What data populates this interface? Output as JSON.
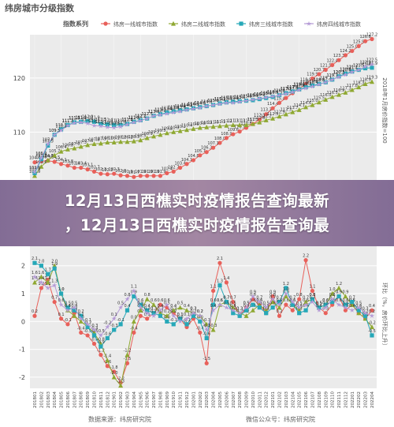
{
  "chart_data": [
    {
      "type": "line",
      "title": "纬房城市分级指数",
      "legend_title": "指数系列",
      "legend_position": "top",
      "ylabel": "2018年1月房价指数=100",
      "ylim": [
        101,
        128
      ],
      "yticks": [
        110,
        120
      ],
      "series": [
        {
          "name": "纬房一线城市指数",
          "color": "#e8605a",
          "marker": "circle",
          "values": [
            104.4,
            104.6,
            104.7,
            104.5,
            104.1,
            103.8,
            103.4,
            103.4,
            103.1,
            102.7,
            102.3,
            102.2,
            102.3,
            102.0,
            101.9,
            101.7,
            101.9,
            101.9,
            101.9,
            101.9,
            102.4,
            102.7,
            103.4,
            104.1,
            104.8,
            105.7,
            106.3,
            107.1,
            108.0,
            108.9,
            109.6,
            110.1,
            110.8,
            111.5,
            112.3,
            113.3,
            114.4,
            115.4,
            116.3,
            117.2,
            118.0,
            118.9,
            119.9,
            120.7,
            121.5,
            122.4,
            123.3,
            124.2,
            125.0,
            125.9,
            126.8,
            127.2
          ]
        },
        {
          "name": "纬房二线城市指数",
          "color": "#8fa832",
          "marker": "triangle",
          "values": [
            101.9,
            103.6,
            104.8,
            105.7,
            106.4,
            106.8,
            107.0,
            107.3,
            107.6,
            107.8,
            107.9,
            108.1,
            108.1,
            108.2,
            108.2,
            108.3,
            108.5,
            108.9,
            109.2,
            109.5,
            109.8,
            110.0,
            110.2,
            110.4,
            110.6,
            110.8,
            110.9,
            111.0,
            111.1,
            111.2,
            111.3,
            111.3,
            111.3,
            111.5,
            111.8,
            112.2,
            112.5,
            112.9,
            113.3,
            113.7,
            114.1,
            114.6,
            115.0,
            115.5,
            116.0,
            116.5,
            116.9,
            117.3,
            117.8,
            118.3,
            118.9,
            119.3
          ]
        },
        {
          "name": "纬房三线城市指数",
          "color": "#26a8b8",
          "marker": "square",
          "values": [
            102.4,
            105.0,
            107.5,
            109.5,
            110.5,
            111.3,
            111.8,
            111.9,
            112.0,
            111.9,
            111.5,
            111.4,
            111.3,
            111.3,
            111.5,
            111.9,
            112.2,
            112.5,
            113.0,
            113.3,
            113.6,
            113.8,
            114.0,
            114.2,
            114.4,
            114.6,
            114.8,
            115.0,
            115.3,
            115.5,
            115.6,
            115.7,
            115.8,
            115.9,
            116.1,
            116.3,
            116.5,
            116.8,
            117.2,
            117.5,
            117.9,
            118.3,
            118.6,
            118.9,
            119.2,
            119.7,
            120.3,
            120.8,
            121.2,
            121.5,
            121.8,
            121.9
          ]
        },
        {
          "name": "纬房四线城市指数",
          "color": "#b49ad6",
          "marker": "star",
          "values": [
            102.6,
            105.2,
            107.8,
            109.5,
            110.3,
            111.2,
            111.7,
            111.8,
            111.6,
            111.2,
            111.1,
            110.9,
            110.8,
            111.0,
            111.4,
            111.8,
            112.1,
            112.5,
            113.0,
            113.2,
            113.4,
            113.6,
            113.8,
            114.1,
            114.3,
            114.5,
            114.8,
            115.0,
            115.2,
            115.4,
            115.4,
            115.6,
            115.8,
            116.0,
            116.2,
            116.4,
            116.6,
            116.8,
            117.1,
            117.4,
            117.8,
            118.1,
            118.4,
            118.8,
            119.2,
            119.7,
            120.2,
            120.6,
            121.1,
            121.5,
            122.1,
            122.5
          ]
        }
      ]
    },
    {
      "type": "line",
      "ylabel": "环比（%，房价环比上升）",
      "ylim": [
        -2.4,
        2.7
      ],
      "yticks": [
        -2,
        -1,
        0,
        1,
        2
      ],
      "x": [
        "201801",
        "201802",
        "201803",
        "201804",
        "201805",
        "201806",
        "201807",
        "201808",
        "201809",
        "201810",
        "201811",
        "201812",
        "201901",
        "201902",
        "201903",
        "201904",
        "201905",
        "201906",
        "201907",
        "201908",
        "201909",
        "201910",
        "201911",
        "201912",
        "202001",
        "202002",
        "202003",
        "202004",
        "202005",
        "202006",
        "202007",
        "202008",
        "202009",
        "202010",
        "202011",
        "202012",
        "202101",
        "202102",
        "202103",
        "202104",
        "202105",
        "202106",
        "202107",
        "202108",
        "202109",
        "202110",
        "202111",
        "202112",
        "202201",
        "202202",
        "202203",
        "202204"
      ],
      "series": [
        {
          "name": "纬房一线城市指数",
          "color": "#e8605a",
          "values": [
            0.2,
            1.2,
            1.5,
            0.7,
            0.1,
            -0.1,
            0.3,
            -0.4,
            -0.5,
            -0.8,
            -1.2,
            -1.6,
            -1.8,
            -2.2,
            -1.5,
            -0.4,
            0.2,
            0.1,
            0.3,
            0.6,
            0.5,
            0.3,
            0.1,
            -0.2,
            0.1,
            -0.4,
            -1.5,
            1.1,
            2.1,
            1.4,
            0.7,
            0.2,
            0.5,
            0.8,
            0.6,
            0.3,
            0.9,
            0.2,
            0.6,
            0.4,
            0.8,
            2.2,
            1.1,
            0.5,
            0.3,
            0.6,
            0.9,
            0.4,
            0.6,
            0.3,
            0.1,
            0.4
          ]
        },
        {
          "name": "纬房二线城市指数",
          "color": "#8fa832",
          "values": [
            1.4,
            1.6,
            1.4,
            2.0,
            1.0,
            0.4,
            0.2,
            0.0,
            -0.2,
            -0.4,
            -0.8,
            -1.4,
            -2.0,
            -2.3,
            -1.2,
            0.0,
            0.4,
            0.8,
            0.6,
            0.3,
            0.2,
            0.4,
            0.5,
            0.4,
            0.3,
            0.2,
            -0.1,
            -0.3,
            0.6,
            0.7,
            0.5,
            0.3,
            0.2,
            0.4,
            0.6,
            0.4,
            0.7,
            0.5,
            0.9,
            0.6,
            0.4,
            0.7,
            0.8,
            0.5,
            0.6,
            1.0,
            1.2,
            0.9,
            0.6,
            0.3,
            0.1,
            -0.2
          ]
        },
        {
          "name": "纬房三线城市指数",
          "color": "#26a8b8",
          "values": [
            2.1,
            2.0,
            1.7,
            1.9,
            1.0,
            0.5,
            0.4,
            0.2,
            -0.2,
            -0.5,
            -0.9,
            -0.6,
            -0.3,
            -0.1,
            0.4,
            0.9,
            0.6,
            0.4,
            0.3,
            0.2,
            0.0,
            -0.1,
            0.1,
            -0.1,
            0.2,
            0.0,
            -0.6,
            0.6,
            1.3,
            0.7,
            0.3,
            0.2,
            0.4,
            0.6,
            0.5,
            0.3,
            0.5,
            0.7,
            1.2,
            0.6,
            0.3,
            0.4,
            0.8,
            0.5,
            0.6,
            0.7,
            0.9,
            0.6,
            0.7,
            0.4,
            0.2,
            -0.5
          ]
        },
        {
          "name": "纬房四线城市指数",
          "color": "#b49ad6",
          "values": [
            1.6,
            1.4,
            1.2,
            1.3,
            0.6,
            0.4,
            0.5,
            0.1,
            -0.1,
            -0.3,
            -0.5,
            -0.2,
            0.1,
            0.5,
            0.8,
            1.1,
            0.5,
            0.3,
            0.2,
            0.4,
            0.6,
            0.2,
            0.0,
            0.1,
            0.3,
            0.2,
            -0.3,
            0.4,
            0.6,
            0.5,
            0.4,
            0.3,
            0.5,
            0.9,
            0.7,
            0.5,
            0.8,
            0.6,
            1.0,
            0.7,
            0.5,
            0.6,
            0.7,
            0.4,
            0.5,
            0.8,
            0.6,
            0.5,
            0.4,
            0.5,
            0.3,
            0.2
          ]
        }
      ]
    }
  ],
  "labels": {
    "source": "数据来源：纬房研究院",
    "wechat": "微信公众号：纬房研究院"
  },
  "banner": {
    "line1": "12月13日西樵实时疫情报告查询最新",
    "line2": "，12月13日西樵实时疫情报告查询最"
  }
}
